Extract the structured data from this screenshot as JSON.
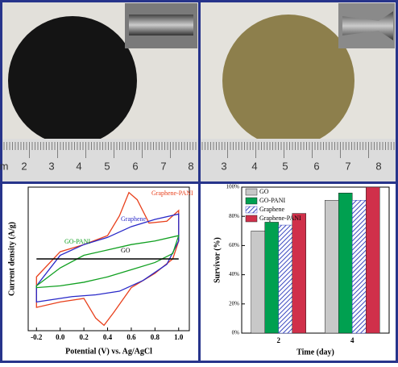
{
  "photos": [
    {
      "ruler_labels": [
        "m",
        "2",
        "3",
        "4",
        "5",
        "6",
        "7",
        "8"
      ]
    },
    {
      "ruler_labels": [
        "3",
        "4",
        "5",
        "6",
        "7",
        "8"
      ]
    }
  ],
  "chart_data": [
    {
      "type": "line",
      "xlabel": "Potential (V) vs. Ag/AgCl",
      "ylabel": "Current density (A/g)",
      "xlim": [
        -0.27,
        1.09
      ],
      "xticks": [
        -0.2,
        {
          "value": 0,
          "label": "0.0"
        },
        0.2,
        0.4,
        0.6,
        0.8,
        {
          "value": 1,
          "label": "1.0"
        }
      ],
      "ylim": [
        -4,
        4
      ],
      "series": [
        {
          "name": "Graphene-PANI",
          "color": "#e8401c",
          "x": [
            -0.2,
            0,
            0.2,
            0.4,
            0.5,
            0.58,
            0.65,
            0.75,
            0.9,
            1.0,
            1.0,
            0.95,
            0.8,
            0.6,
            0.45,
            0.37,
            0.3,
            0.2,
            0,
            -0.2
          ],
          "values": [
            -1.0,
            0.4,
            0.8,
            1.3,
            2.4,
            3.7,
            3.3,
            2.0,
            2.1,
            2.7,
            1.0,
            0.0,
            -0.8,
            -1.6,
            -3.0,
            -3.7,
            -3.3,
            -2.2,
            -2.4,
            -2.7
          ]
        },
        {
          "name": "Graphene",
          "color": "#2828c8",
          "x": [
            -0.2,
            0,
            0.2,
            0.4,
            0.6,
            0.8,
            1.0,
            1.0,
            0.9,
            0.7,
            0.5,
            0.3,
            0.1,
            -0.2
          ],
          "values": [
            -1.5,
            0.2,
            0.8,
            1.2,
            1.8,
            2.2,
            2.5,
            1.0,
            -0.3,
            -1.2,
            -1.8,
            -2.0,
            -2.1,
            -2.4
          ]
        },
        {
          "name": "GO-PANI",
          "color": "#10a020",
          "x": [
            -0.2,
            0,
            0.2,
            0.4,
            0.6,
            0.8,
            1.0,
            0.95,
            0.8,
            0.6,
            0.4,
            0.2,
            0,
            -0.2
          ],
          "values": [
            -1.5,
            -0.5,
            0.2,
            0.5,
            0.8,
            1.0,
            1.3,
            0.3,
            -0.2,
            -0.6,
            -1.0,
            -1.3,
            -1.5,
            -1.6
          ]
        },
        {
          "name": "GO",
          "color": "#000000",
          "x": [
            -0.2,
            0.4,
            1.0
          ],
          "values": [
            0,
            0,
            0
          ]
        }
      ]
    },
    {
      "type": "bar",
      "xlabel": "Time (day)",
      "ylabel": "Survivor (%)",
      "categories": [
        "2",
        "4"
      ],
      "ylim": [
        0,
        100
      ],
      "yticks": [
        {
          "value": 0,
          "label": "0%"
        },
        {
          "value": 20,
          "label": "20%"
        },
        {
          "value": 40,
          "label": "40%"
        },
        {
          "value": 60,
          "label": "60%"
        },
        {
          "value": 80,
          "label": "80%"
        },
        {
          "value": 100,
          "label": "100%"
        }
      ],
      "series": [
        {
          "name": "GO",
          "color": "#c8c8c8",
          "values": [
            70,
            91
          ]
        },
        {
          "name": "GO-PANI",
          "color": "#00a050",
          "values": [
            76,
            96
          ]
        },
        {
          "name": "Graphene",
          "color": "#3a48c0",
          "hatch": true,
          "values": [
            74,
            91
          ]
        },
        {
          "name": "Graphene-PANI",
          "color": "#d0304a",
          "values": [
            82,
            100
          ]
        }
      ]
    }
  ]
}
